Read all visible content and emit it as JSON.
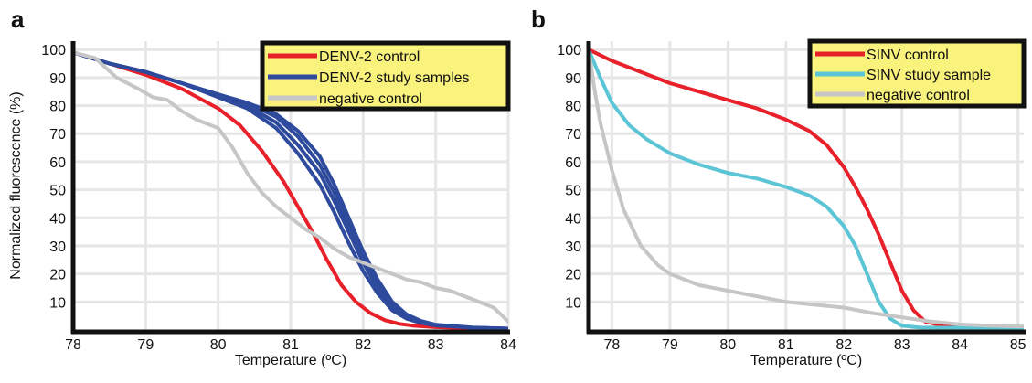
{
  "chart_data": [
    {
      "type": "line",
      "panel_label": "a",
      "xlabel": "Temperature (ºC)",
      "ylabel": "Normalized fluorescence (%)",
      "xlim": [
        78,
        84
      ],
      "ylim": [
        0,
        103
      ],
      "x_ticks": [
        78,
        79,
        80,
        81,
        82,
        83,
        84
      ],
      "y_ticks": [
        10,
        20,
        30,
        40,
        50,
        60,
        70,
        80,
        90,
        100
      ],
      "grid": true,
      "legend_position": "top-right",
      "series": [
        {
          "name": "DENV-2 control",
          "color": "#e8202a",
          "x": [
            78,
            78.5,
            79,
            79.5,
            80,
            80.3,
            80.6,
            80.9,
            81.1,
            81.3,
            81.5,
            81.7,
            81.9,
            82.1,
            82.3,
            82.5,
            82.7,
            83,
            83.5,
            84
          ],
          "y": [
            99,
            95,
            91,
            86,
            79,
            73,
            64,
            53,
            44,
            35,
            25,
            16,
            10,
            6,
            3.5,
            2.2,
            1.5,
            1,
            0.6,
            0.5
          ]
        },
        {
          "name": "DENV-2 study samples",
          "color": "#2e4a9c",
          "x": [
            78,
            78.5,
            79,
            79.5,
            80,
            80.4,
            80.8,
            81.1,
            81.4,
            81.6,
            81.8,
            82,
            82.2,
            82.4,
            82.6,
            82.8,
            83,
            83.5,
            84
          ],
          "y": [
            99,
            95,
            92,
            88,
            83,
            79,
            72,
            63,
            52,
            42,
            31,
            21,
            13,
            7,
            4,
            2.5,
            1.6,
            0.8,
            0.5
          ]
        },
        {
          "name": "DENV-2 study samples",
          "color": "#2e4a9c",
          "x": [
            78,
            78.5,
            79,
            79.5,
            80,
            80.4,
            80.8,
            81.1,
            81.4,
            81.6,
            81.8,
            82,
            82.2,
            82.4,
            82.6,
            82.8,
            83,
            83.5,
            84
          ],
          "y": [
            99,
            95,
            92,
            88,
            84,
            80,
            74,
            66,
            56,
            46,
            35,
            24,
            15,
            8,
            4.5,
            2.7,
            1.7,
            0.8,
            0.5
          ]
        },
        {
          "name": "DENV-2 study samples",
          "color": "#2e4a9c",
          "x": [
            78,
            78.5,
            79,
            79.5,
            80,
            80.4,
            80.8,
            81.1,
            81.4,
            81.6,
            81.8,
            82,
            82.2,
            82.4,
            82.6,
            82.8,
            83,
            83.5,
            84
          ],
          "y": [
            99,
            95,
            92,
            88,
            84,
            81,
            76,
            69,
            59,
            49,
            37,
            26,
            16,
            9,
            5,
            3,
            1.8,
            0.8,
            0.5
          ]
        },
        {
          "name": "DENV-2 study samples",
          "color": "#2e4a9c",
          "x": [
            78,
            78.5,
            79,
            79.5,
            80,
            80.4,
            80.8,
            81.1,
            81.4,
            81.6,
            81.8,
            82,
            82.2,
            82.4,
            82.6,
            82.8,
            83,
            83.5,
            84
          ],
          "y": [
            99,
            95,
            92,
            88,
            84,
            81,
            77,
            71,
            62,
            52,
            40,
            28,
            18,
            10,
            5.5,
            3.2,
            1.9,
            0.9,
            0.5
          ]
        },
        {
          "name": "negative control",
          "color": "#c6c6c6",
          "x": [
            78,
            78.3,
            78.6,
            78.9,
            79.1,
            79.3,
            79.5,
            79.7,
            80,
            80.2,
            80.4,
            80.6,
            80.8,
            81,
            81.2,
            81.4,
            81.6,
            81.8,
            82,
            82.2,
            82.4,
            82.6,
            82.8,
            83,
            83.2,
            83.4,
            83.6,
            83.8,
            84
          ],
          "y": [
            99,
            97,
            90,
            86,
            83,
            82,
            78,
            75,
            72,
            65,
            56,
            49,
            44,
            40,
            36,
            33,
            29,
            26,
            24,
            22,
            20,
            18,
            17,
            15,
            14,
            12,
            10,
            8,
            3
          ]
        }
      ]
    },
    {
      "type": "line",
      "panel_label": "b",
      "xlabel": "Temperature (ºC)",
      "ylabel": "",
      "xlim": [
        77.6,
        85.1
      ],
      "ylim": [
        0,
        103
      ],
      "x_ticks": [
        78,
        79,
        80,
        81,
        82,
        83,
        84,
        85
      ],
      "y_ticks": [
        10,
        20,
        30,
        40,
        50,
        60,
        70,
        80,
        90,
        100
      ],
      "grid": true,
      "legend_position": "top-right",
      "series": [
        {
          "name": "SINV control",
          "color": "#e8202a",
          "x": [
            77.6,
            78,
            78.5,
            79,
            79.5,
            80,
            80.5,
            81,
            81.4,
            81.7,
            82,
            82.2,
            82.4,
            82.6,
            82.8,
            83,
            83.2,
            83.4,
            83.7,
            84,
            84.5,
            85.1
          ],
          "y": [
            100,
            96,
            92,
            88,
            85,
            82,
            79,
            75,
            71,
            66,
            58,
            51,
            43,
            34,
            24,
            14,
            7,
            3,
            1.5,
            1,
            0.8,
            0.8
          ]
        },
        {
          "name": "SINV study sample",
          "color": "#5bc5d6",
          "x": [
            77.6,
            77.8,
            78,
            78.3,
            78.6,
            79,
            79.5,
            80,
            80.5,
            81,
            81.4,
            81.7,
            82,
            82.2,
            82.4,
            82.6,
            82.8,
            83,
            83.3,
            83.6,
            84,
            84.5,
            85.1
          ],
          "y": [
            100,
            90,
            81,
            73,
            68,
            63,
            59,
            56,
            54,
            51,
            48,
            44,
            37,
            30,
            20,
            10,
            4,
            1.5,
            0.9,
            0.8,
            0.8,
            0.8,
            0.8
          ]
        },
        {
          "name": "negative control",
          "color": "#c6c6c6",
          "x": [
            77.6,
            77.7,
            77.8,
            78,
            78.2,
            78.5,
            78.8,
            79,
            79.5,
            80,
            80.5,
            81,
            81.5,
            82,
            82.5,
            83,
            83.5,
            84,
            84.5,
            85.1
          ],
          "y": [
            100,
            86,
            74,
            57,
            43,
            30,
            23,
            20,
            16,
            14,
            12,
            10,
            9,
            8,
            6,
            4.5,
            3,
            2,
            1.5,
            1.2
          ]
        }
      ]
    }
  ]
}
